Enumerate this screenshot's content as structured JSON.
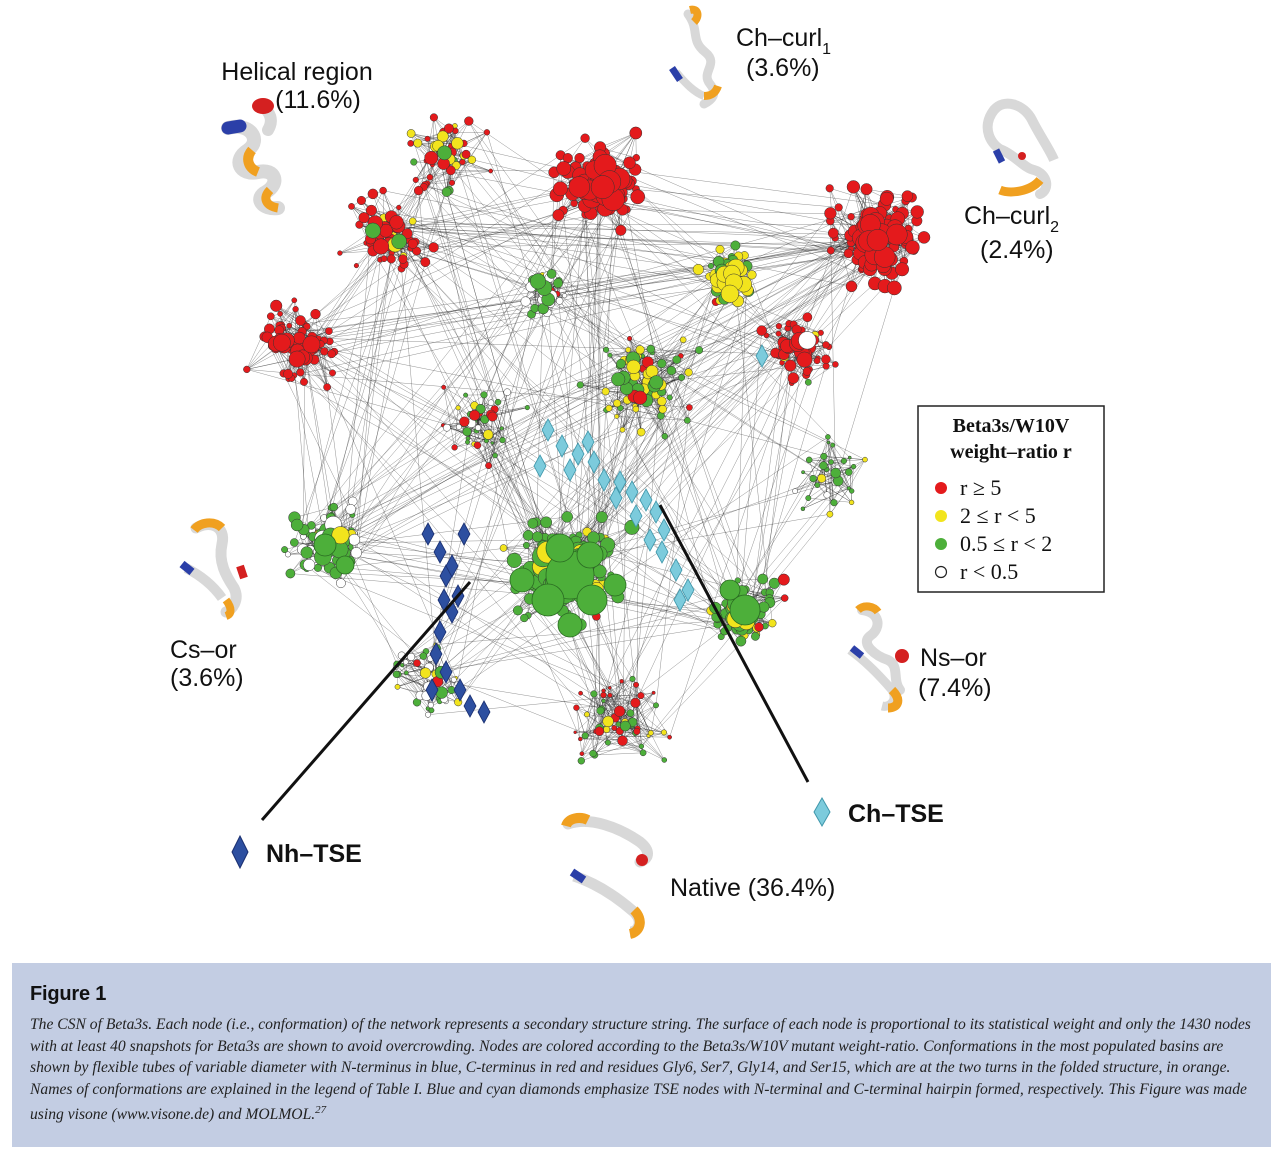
{
  "figure": {
    "clusters": [
      {
        "name": "helical-region",
        "label": "Helical region",
        "percent": "(11.6%)"
      },
      {
        "name": "ch-curl1",
        "label": "Ch–curl",
        "sub": "1",
        "percent": "(3.6%)"
      },
      {
        "name": "ch-curl2",
        "label": "Ch–curl",
        "sub": "2",
        "percent": "(2.4%)"
      },
      {
        "name": "cs-or",
        "label": "Cs–or",
        "percent": "(3.6%)"
      },
      {
        "name": "ns-or",
        "label": "Ns–or",
        "percent": "(7.4%)"
      },
      {
        "name": "native",
        "label": "Native (36.4%)"
      }
    ],
    "markers": {
      "nh_tse": "Nh–TSE",
      "ch_tse": "Ch–TSE"
    },
    "legend": {
      "title_line1": "Beta3s/W10V",
      "title_line2": "weight–ratio r",
      "items": [
        {
          "label": "r ≥ 5",
          "color": "#e41a1c"
        },
        {
          "label": "2 ≤ r < 5",
          "color": "#f2e41d"
        },
        {
          "label": "0.5 ≤ r < 2",
          "color": "#4daf3a"
        },
        {
          "label": "r < 0.5",
          "color": "#ffffff"
        }
      ]
    },
    "colors": {
      "red": "#e41a1c",
      "yellow": "#f2e41d",
      "green": "#4daf3a",
      "white": "#ffffff",
      "blue_diamond": "#2d4fa0",
      "cyan_diamond": "#7ccbdc",
      "n_terminus": "#2b3fa8",
      "c_terminus": "#d42020",
      "turn_residues": "#f0a020"
    }
  },
  "caption": {
    "title": "Figure 1",
    "text": "The CSN of Beta3s. Each node (i.e., conformation) of the network represents a secondary structure string. The surface of each node is proportional to its statistical weight and only the 1430 nodes with at least 40 snapshots for Beta3s are shown to avoid overcrowding. Nodes are colored according to the Beta3s/W10V mutant weight-ratio. Conformations in the most populated basins are shown by flexible tubes of variable diameter with N-terminus in blue, C-terminus in red and residues Gly6, Ser7, Gly14, and Ser15, which are at the two turns in the folded structure, in orange. Names of conformations are explained in the legend of Table I. Blue and cyan diamonds emphasize TSE nodes with N-terminal and C-terminal hairpin formed, respectively. This Figure was made using visone (www.visone.de) and MOLMOL.",
    "reference": "27"
  }
}
